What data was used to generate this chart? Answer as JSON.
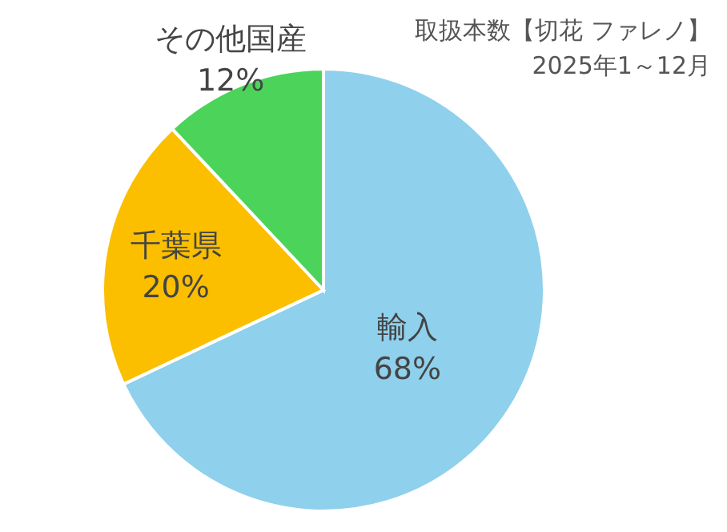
{
  "chart_data": {
    "type": "pie",
    "title": "取扱本数【切花 ファレノ】",
    "subtitle": "2025年1～12月",
    "categories": [
      "輸入",
      "千葉県",
      "その他国産"
    ],
    "values": [
      68,
      20,
      12
    ],
    "value_labels": [
      "68%",
      "20%",
      "12%"
    ],
    "colors": [
      "#8fd0ec",
      "#fbbf00",
      "#4cd45a"
    ]
  }
}
